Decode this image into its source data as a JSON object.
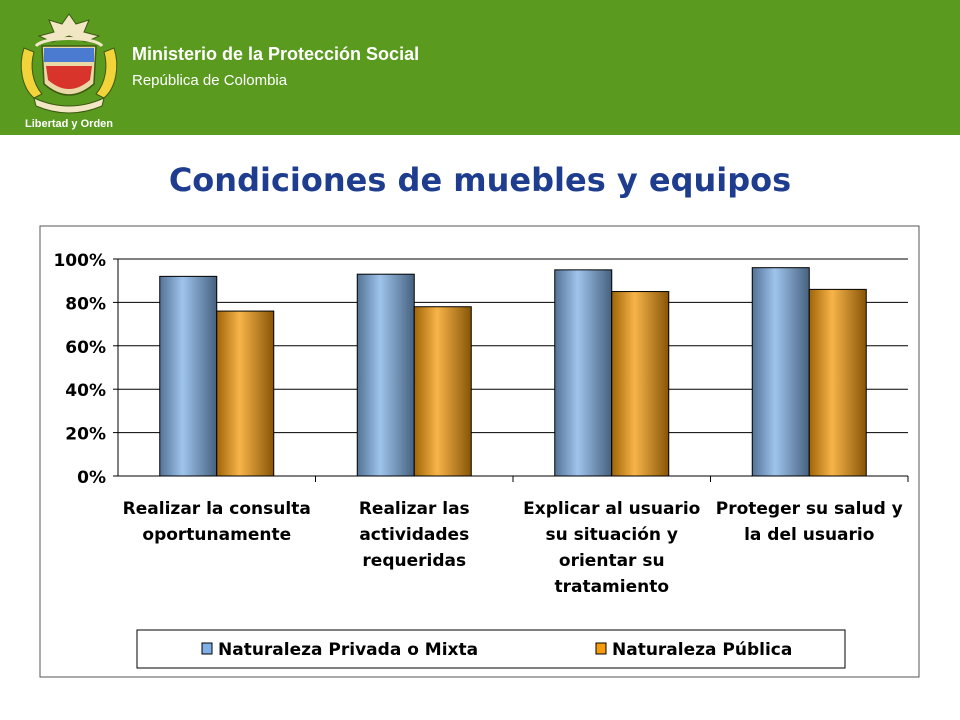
{
  "header": {
    "title": "Ministerio de la Protección Social",
    "subtitle": "República de Colombia",
    "logo_motto": "Libertad y Orden",
    "bg_color": "#5a9a1f"
  },
  "slide": {
    "title": "Condiciones de muebles y equipos",
    "title_color": "#1f3d8f"
  },
  "chart_data": {
    "type": "bar",
    "categories": [
      [
        "Realizar la consulta",
        "oportunamente"
      ],
      [
        "Realizar las",
        "actividades",
        "requeridas"
      ],
      [
        "Explicar al usuario",
        "su situación y",
        "orientar su",
        "tratamiento"
      ],
      [
        "Proteger su salud y",
        "la del usuario"
      ]
    ],
    "series": [
      {
        "name": "Naturaleza Privada o Mixta",
        "values": [
          92,
          93,
          95,
          96
        ],
        "color": "#7fb0e6"
      },
      {
        "name": "Naturaleza Pública",
        "values": [
          76,
          78,
          85,
          86
        ],
        "color": "#f59b0c"
      }
    ],
    "ylim": [
      0,
      100
    ],
    "yticks": [
      "0%",
      "20%",
      "40%",
      "60%",
      "80%",
      "100%"
    ],
    "grid": true,
    "legend_position": "bottom"
  }
}
